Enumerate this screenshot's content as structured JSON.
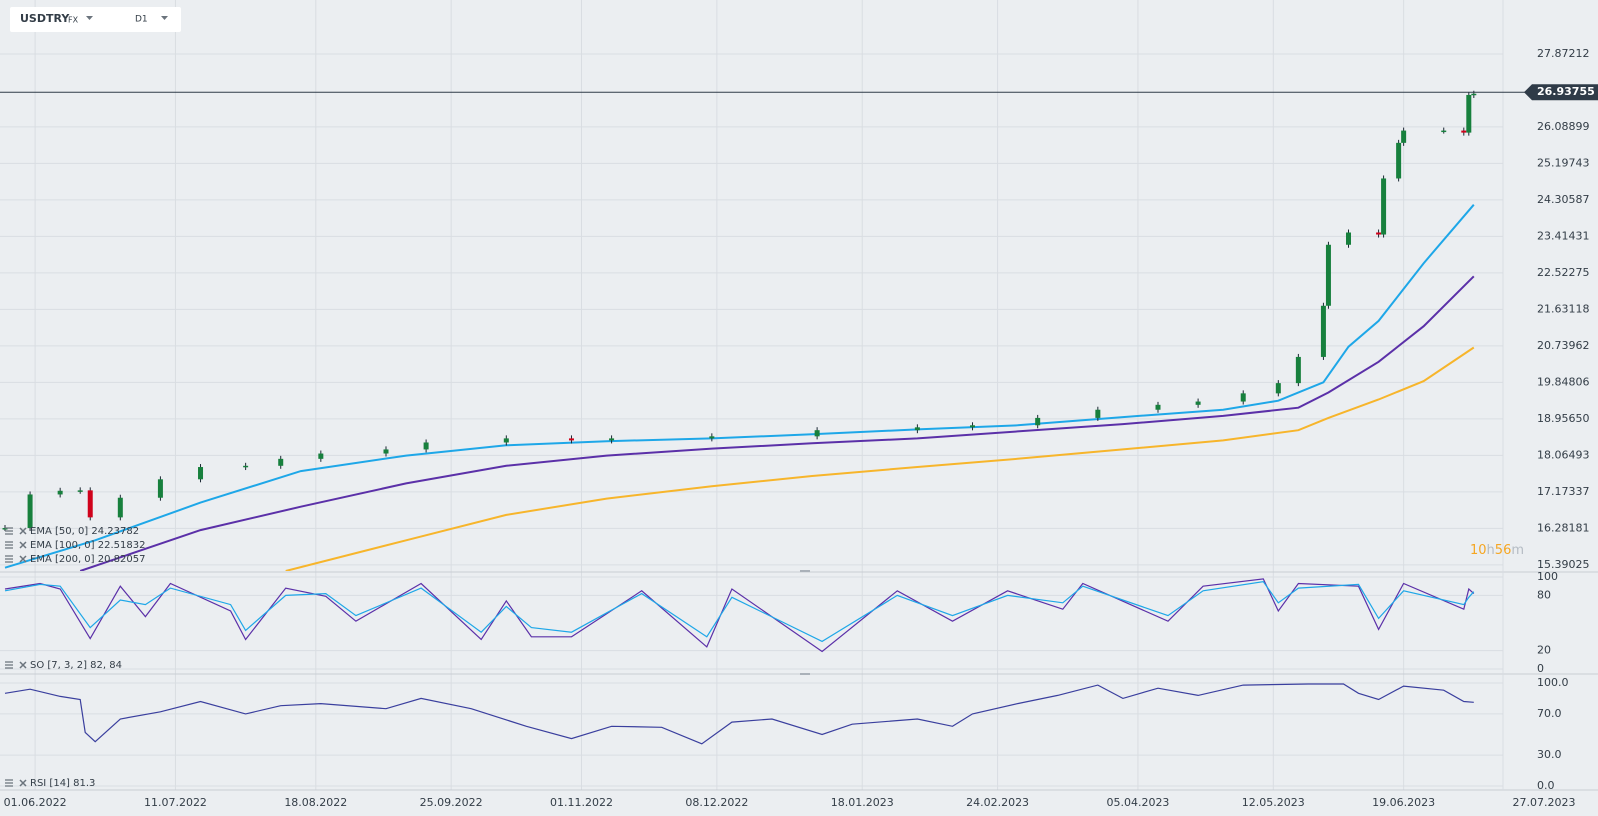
{
  "header": {
    "symbol": "USDTRY",
    "market": "FX",
    "interval": "D1"
  },
  "chart_data": [
    {
      "type": "candlestick",
      "x": [
        "24.05.2022",
        "31.05.2022",
        "08.06.2022",
        "14.06.2022",
        "16.06.2022",
        "24.06.2022",
        "06.07.2022",
        "18.07.2022",
        "29.07.2022",
        "09.08.2022",
        "19.08.2022",
        "07.09.2022",
        "19.09.2022",
        "11.10.2022",
        "28.10.2022",
        "09.11.2022",
        "07.12.2022",
        "05.01.2023",
        "02.02.2023",
        "17.02.2023",
        "08.03.2023",
        "24.03.2023",
        "11.04.2023",
        "21.04.2023",
        "04.05.2023",
        "15.05.2023",
        "19.05.2023",
        "26.05.2023",
        "29.05.2023",
        "02.06.2023",
        "12.06.2023",
        "13.06.2023",
        "16.06.2023",
        "19.06.2023",
        "29.06.2023",
        "05.07.2023",
        "06.07.2023",
        "07.07.2023"
      ],
      "close": [
        16.29,
        17.11,
        17.2,
        17.21,
        16.55,
        17.03,
        17.48,
        17.78,
        17.81,
        17.98,
        18.11,
        18.21,
        18.38,
        18.48,
        18.43,
        18.48,
        18.53,
        18.68,
        18.75,
        18.8,
        18.98,
        19.18,
        19.3,
        19.38,
        19.58,
        19.83,
        20.47,
        21.72,
        23.21,
        23.51,
        23.46,
        24.83,
        25.7,
        26.0,
        26.0,
        25.95,
        26.87,
        26.9
      ],
      "up_color": "#17803d",
      "down_color": "#d0021b",
      "last_price": 26.93755,
      "countdown": {
        "hours": "10",
        "h": "h",
        "minutes": "56",
        "m": "m"
      },
      "xlim": [
        "23.05.2022",
        "27.07.2023"
      ],
      "xticks": [
        "01.06.2022",
        "11.07.2022",
        "18.08.2022",
        "25.09.2022",
        "01.11.2022",
        "08.12.2022",
        "18.01.2023",
        "24.02.2023",
        "05.04.2023",
        "12.05.2023",
        "19.06.2023",
        "27.07.2023"
      ],
      "ylim": [
        15.24,
        29.19
      ],
      "yticks": [
        15.39025,
        16.28181,
        17.17337,
        18.06493,
        {
          "value": 18.9565,
          "label": "18.95650"
        },
        19.84806,
        20.73962,
        21.63118,
        22.52275,
        23.41431,
        24.30587,
        25.19743,
        26.08899,
        27.87212
      ],
      "grid": true,
      "series": [
        {
          "name": "EMA [50, 0] 24.23782",
          "color": "#1ea7e8",
          "x": [
            "24.05.2022",
            "17.06.2022",
            "18.07.2022",
            "15.08.2022",
            "13.09.2022",
            "11.10.2022",
            "08.11.2022",
            "07.12.2022",
            "04.01.2023",
            "02.02.2023",
            "02.03.2023",
            "31.03.2023",
            "28.04.2023",
            "15.05.2023",
            "26.05.2023",
            "02.06.2023",
            "12.06.2023",
            "23.06.2023",
            "07.07.2023"
          ],
          "values": [
            15.32,
            15.99,
            16.91,
            17.68,
            18.06,
            18.31,
            18.41,
            18.48,
            18.58,
            18.7,
            18.8,
            19.0,
            19.18,
            19.4,
            19.85,
            20.72,
            21.35,
            22.76,
            24.19
          ]
        },
        {
          "name": "EMA [100, 0] 22.51832",
          "color": "#5b30a8",
          "x": [
            "14.06.2022",
            "18.07.2022",
            "15.08.2022",
            "13.09.2022",
            "11.10.2022",
            "08.11.2022",
            "07.12.2022",
            "04.01.2023",
            "02.02.2023",
            "02.03.2023",
            "31.03.2023",
            "28.04.2023",
            "19.05.2023",
            "29.05.2023",
            "12.06.2023",
            "23.06.2023",
            "07.07.2023"
          ],
          "values": [
            15.24,
            16.24,
            16.81,
            17.38,
            17.81,
            18.06,
            18.23,
            18.36,
            18.48,
            18.65,
            18.83,
            19.03,
            19.23,
            19.6,
            20.35,
            21.22,
            22.44
          ]
        },
        {
          "name": "EMA [200, 0] 20.82057",
          "color": "#f7b52b",
          "x": [
            "10.08.2022",
            "13.09.2022",
            "11.10.2022",
            "08.11.2022",
            "07.12.2022",
            "04.01.2023",
            "02.02.2023",
            "02.03.2023",
            "31.03.2023",
            "28.04.2023",
            "19.05.2023",
            "29.05.2023",
            "12.06.2023",
            "23.06.2023",
            "07.07.2023"
          ],
          "values": [
            15.24,
            15.99,
            16.61,
            17.01,
            17.31,
            17.56,
            17.78,
            17.98,
            18.21,
            18.43,
            18.68,
            18.98,
            19.43,
            19.88,
            20.7
          ]
        }
      ]
    },
    {
      "type": "line",
      "label": "SO [7, 3, 2] 82, 84",
      "x": [
        "24.05.2022",
        "02.06.2022",
        "08.06.2022",
        "16.06.2022",
        "24.06.2022",
        "01.07.2022",
        "08.07.2022",
        "26.07.2022",
        "29.07.2022",
        "10.08.2022",
        "22.08.2022",
        "30.08.2022",
        "16.09.2022",
        "04.10.2022",
        "11.10.2022",
        "18.10.2022",
        "28.10.2022",
        "17.11.2022",
        "06.12.2022",
        "13.12.2022",
        "06.01.2023",
        "27.01.2023",
        "13.02.2023",
        "28.02.2023",
        "15.03.2023",
        "21.03.2023",
        "13.04.2023",
        "24.04.2023",
        "10.05.2023",
        "15.05.2023",
        "19.05.2023",
        "06.06.2023",
        "12.06.2023",
        "19.06.2023",
        "05.07.2023",
        "06.07.2023",
        "07.07.2023"
      ],
      "ylim": [
        -3.3,
        103.3
      ],
      "yticks": [
        0,
        20,
        80,
        100
      ],
      "series": [
        {
          "color": "#5b30a8",
          "values": [
            87,
            93,
            87,
            33,
            90,
            57,
            93,
            63,
            32,
            88,
            79,
            52,
            93,
            32,
            74,
            35,
            35,
            85,
            24,
            87,
            19,
            85,
            52,
            85,
            65,
            93,
            52,
            90,
            98,
            63,
            93,
            90,
            43,
            93,
            65,
            87,
            82
          ]
        },
        {
          "color": "#1ea7e8",
          "values": [
            85,
            92,
            90,
            45,
            75,
            70,
            88,
            70,
            42,
            80,
            82,
            58,
            88,
            40,
            68,
            45,
            40,
            82,
            35,
            78,
            30,
            80,
            58,
            80,
            72,
            90,
            58,
            85,
            95,
            72,
            88,
            92,
            55,
            85,
            70,
            78,
            84
          ]
        }
      ]
    },
    {
      "type": "line",
      "label": "RSI [14] 81.3",
      "x": [
        "24.05.2022",
        "31.05.2022",
        "08.06.2022",
        "14.06.2022",
        "15.06.2022",
        "17.06.2022",
        "24.06.2022",
        "06.07.2022",
        "18.07.2022",
        "29.07.2022",
        "09.08.2022",
        "19.08.2022",
        "07.09.2022",
        "16.09.2022",
        "30.09.2022",
        "17.10.2022",
        "28.10.2022",
        "09.11.2022",
        "23.11.2022",
        "05.12.2022",
        "13.12.2022",
        "23.12.2022",
        "06.01.2023",
        "16.01.2023",
        "02.02.2023",
        "13.02.2023",
        "17.02.2023",
        "02.03.2023",
        "14.03.2023",
        "24.03.2023",
        "31.03.2023",
        "11.04.2023",
        "21.04.2023",
        "04.05.2023",
        "23.05.2023",
        "01.06.2023",
        "06.06.2023",
        "12.06.2023",
        "19.06.2023",
        "29.06.2023",
        "05.07.2023",
        "07.07.2023"
      ],
      "ylim": [
        -3.9,
        106.8
      ],
      "yticks": [
        {
          "value": 0,
          "label": "0.0"
        },
        {
          "value": 30,
          "label": "30.0"
        },
        {
          "value": 70,
          "label": "70.0"
        },
        {
          "value": 100,
          "label": "100.0"
        }
      ],
      "series": [
        {
          "color": "#3a3f9e",
          "values": [
            90,
            94,
            87,
            84,
            52,
            43,
            65,
            72,
            82,
            70,
            78,
            80,
            75,
            85,
            75,
            58,
            46,
            58,
            57,
            41,
            62,
            65,
            50,
            60,
            65,
            58,
            70,
            80,
            88,
            98,
            85,
            95,
            88,
            98,
            99,
            99,
            90,
            84,
            97,
            93,
            82,
            81.3
          ]
        }
      ]
    }
  ]
}
